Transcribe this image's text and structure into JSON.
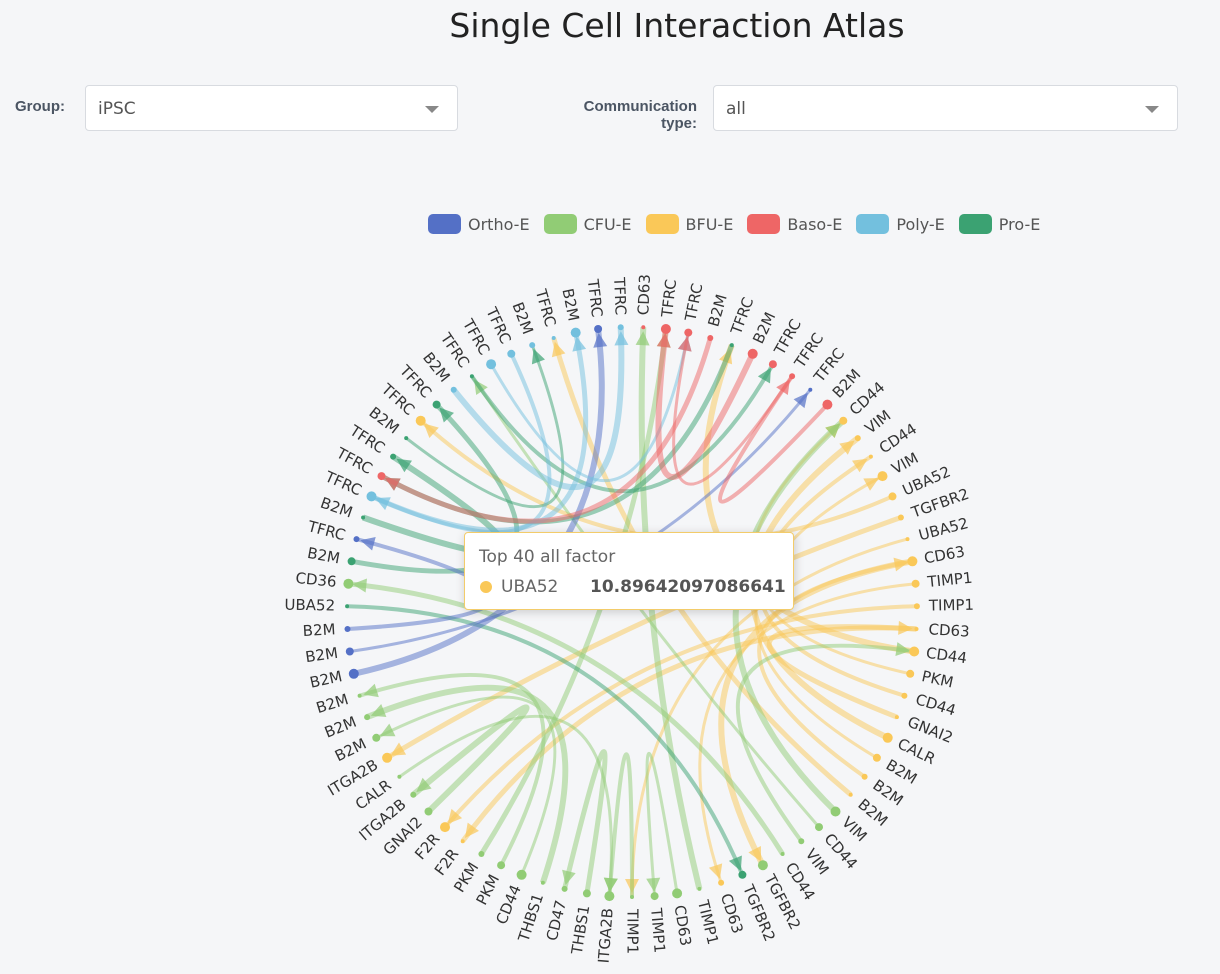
{
  "page": {
    "title": "Single Cell Interaction Atlas"
  },
  "filters": {
    "group_label": "Group:",
    "group_value": "iPSC",
    "comm_label_line1": "Communication",
    "comm_label_line2": "type:",
    "comm_value": "all"
  },
  "legend": [
    {
      "name": "Ortho-E",
      "color": "#5470c6"
    },
    {
      "name": "CFU-E",
      "color": "#91cc75"
    },
    {
      "name": "BFU-E",
      "color": "#fac858"
    },
    {
      "name": "Baso-E",
      "color": "#ee6666"
    },
    {
      "name": "Poly-E",
      "color": "#73c0de"
    },
    {
      "name": "Pro-E",
      "color": "#3ba272"
    }
  ],
  "tooltip": {
    "title": "Top 40 all factor",
    "name": "UBA52",
    "value": "10.89642097086641",
    "color": "#fac858"
  },
  "chart_data": {
    "type": "chord",
    "title": "",
    "nodes": [
      {
        "label": "TIMP1",
        "group": "CFU-E"
      },
      {
        "label": "ITGA2B",
        "group": "CFU-E"
      },
      {
        "label": "THBS1",
        "group": "CFU-E"
      },
      {
        "label": "CD47",
        "group": "CFU-E"
      },
      {
        "label": "THBS1",
        "group": "CFU-E"
      },
      {
        "label": "CD44",
        "group": "CFU-E"
      },
      {
        "label": "PKM",
        "group": "CFU-E"
      },
      {
        "label": "PKM",
        "group": "CFU-E"
      },
      {
        "label": "F2R",
        "group": "BFU-E"
      },
      {
        "label": "F2R",
        "group": "BFU-E"
      },
      {
        "label": "GNAI2",
        "group": "CFU-E"
      },
      {
        "label": "ITGA2B",
        "group": "CFU-E"
      },
      {
        "label": "CALR",
        "group": "CFU-E"
      },
      {
        "label": "ITGA2B",
        "group": "BFU-E"
      },
      {
        "label": "B2M",
        "group": "CFU-E"
      },
      {
        "label": "B2M",
        "group": "CFU-E"
      },
      {
        "label": "B2M",
        "group": "CFU-E"
      },
      {
        "label": "B2M",
        "group": "Ortho-E"
      },
      {
        "label": "B2M",
        "group": "Ortho-E"
      },
      {
        "label": "B2M",
        "group": "Ortho-E"
      },
      {
        "label": "UBA52",
        "group": "Pro-E"
      },
      {
        "label": "CD36",
        "group": "CFU-E"
      },
      {
        "label": "B2M",
        "group": "Pro-E"
      },
      {
        "label": "TFRC",
        "group": "Ortho-E"
      },
      {
        "label": "B2M",
        "group": "Pro-E"
      },
      {
        "label": "TFRC",
        "group": "Poly-E"
      },
      {
        "label": "TFRC",
        "group": "Baso-E"
      },
      {
        "label": "TFRC",
        "group": "Pro-E"
      },
      {
        "label": "B2M",
        "group": "Pro-E"
      },
      {
        "label": "TFRC",
        "group": "BFU-E"
      },
      {
        "label": "TFRC",
        "group": "Pro-E"
      },
      {
        "label": "B2M",
        "group": "Poly-E"
      },
      {
        "label": "TFRC",
        "group": "Pro-E"
      },
      {
        "label": "TFRC",
        "group": "Poly-E"
      },
      {
        "label": "TFRC",
        "group": "Poly-E"
      },
      {
        "label": "B2M",
        "group": "Poly-E"
      },
      {
        "label": "TFRC",
        "group": "Poly-E"
      },
      {
        "label": "B2M",
        "group": "Poly-E"
      },
      {
        "label": "TFRC",
        "group": "Ortho-E"
      },
      {
        "label": "TFRC",
        "group": "Poly-E"
      },
      {
        "label": "CD63",
        "group": "Baso-E"
      },
      {
        "label": "TFRC",
        "group": "Baso-E"
      },
      {
        "label": "TFRC",
        "group": "Baso-E"
      },
      {
        "label": "B2M",
        "group": "Baso-E"
      },
      {
        "label": "TFRC",
        "group": "Pro-E"
      },
      {
        "label": "B2M",
        "group": "Baso-E"
      },
      {
        "label": "TFRC",
        "group": "Baso-E"
      },
      {
        "label": "TFRC",
        "group": "Baso-E"
      },
      {
        "label": "TFRC",
        "group": "Ortho-E"
      },
      {
        "label": "B2M",
        "group": "Baso-E"
      },
      {
        "label": "CD44",
        "group": "BFU-E"
      },
      {
        "label": "VIM",
        "group": "BFU-E"
      },
      {
        "label": "CD44",
        "group": "BFU-E"
      },
      {
        "label": "VIM",
        "group": "BFU-E"
      },
      {
        "label": "UBA52",
        "group": "BFU-E"
      },
      {
        "label": "TGFBR2",
        "group": "BFU-E"
      },
      {
        "label": "UBA52",
        "group": "BFU-E"
      },
      {
        "label": "CD63",
        "group": "BFU-E"
      },
      {
        "label": "TIMP1",
        "group": "BFU-E"
      },
      {
        "label": "TIMP1",
        "group": "BFU-E"
      },
      {
        "label": "CD63",
        "group": "BFU-E"
      },
      {
        "label": "CD44",
        "group": "BFU-E"
      },
      {
        "label": "PKM",
        "group": "BFU-E"
      },
      {
        "label": "CD44",
        "group": "BFU-E"
      },
      {
        "label": "GNAI2",
        "group": "BFU-E"
      },
      {
        "label": "CALR",
        "group": "BFU-E"
      },
      {
        "label": "B2M",
        "group": "BFU-E"
      },
      {
        "label": "B2M",
        "group": "BFU-E"
      },
      {
        "label": "B2M",
        "group": "BFU-E"
      },
      {
        "label": "VIM",
        "group": "CFU-E"
      },
      {
        "label": "CD44",
        "group": "CFU-E"
      },
      {
        "label": "VIM",
        "group": "CFU-E"
      },
      {
        "label": "CD44",
        "group": "CFU-E"
      },
      {
        "label": "TGFBR2",
        "group": "CFU-E"
      },
      {
        "label": "TGFBR2",
        "group": "Pro-E"
      },
      {
        "label": "CD63",
        "group": "BFU-E"
      },
      {
        "label": "TIMP1",
        "group": "CFU-E"
      },
      {
        "label": "CD63",
        "group": "CFU-E"
      },
      {
        "label": "TIMP1",
        "group": "CFU-E"
      }
    ],
    "links": [
      {
        "source": 56,
        "target": 0,
        "group": "BFU-E"
      },
      {
        "source": 54,
        "target": 29,
        "group": "BFU-E"
      },
      {
        "source": 55,
        "target": 13,
        "group": "BFU-E"
      },
      {
        "source": 57,
        "target": 73,
        "group": "BFU-E"
      },
      {
        "source": 58,
        "target": 75,
        "group": "BFU-E"
      },
      {
        "source": 59,
        "target": 9,
        "group": "BFU-E"
      },
      {
        "source": 60,
        "target": 8,
        "group": "BFU-E"
      },
      {
        "source": 61,
        "target": 44,
        "group": "BFU-E"
      },
      {
        "source": 62,
        "target": 50,
        "group": "BFU-E"
      },
      {
        "source": 63,
        "target": 52,
        "group": "BFU-E"
      },
      {
        "source": 64,
        "target": 60,
        "group": "BFU-E"
      },
      {
        "source": 65,
        "target": 51,
        "group": "BFU-E"
      },
      {
        "source": 66,
        "target": 53,
        "group": "BFU-E"
      },
      {
        "source": 67,
        "target": 57,
        "group": "BFU-E"
      },
      {
        "source": 68,
        "target": 36,
        "group": "BFU-E"
      },
      {
        "source": 69,
        "target": 50,
        "group": "CFU-E"
      },
      {
        "source": 70,
        "target": 32,
        "group": "CFU-E"
      },
      {
        "source": 71,
        "target": 61,
        "group": "CFU-E"
      },
      {
        "source": 72,
        "target": 21,
        "group": "CFU-E"
      },
      {
        "source": 76,
        "target": 40,
        "group": "CFU-E"
      },
      {
        "source": 77,
        "target": 78,
        "group": "CFU-E"
      },
      {
        "source": 0,
        "target": 1,
        "group": "CFU-E"
      },
      {
        "source": 2,
        "target": 3,
        "group": "CFU-E"
      },
      {
        "source": 4,
        "target": 15,
        "group": "CFU-E"
      },
      {
        "source": 5,
        "target": 14,
        "group": "CFU-E"
      },
      {
        "source": 6,
        "target": 16,
        "group": "CFU-E"
      },
      {
        "source": 7,
        "target": 41,
        "group": "CFU-E"
      },
      {
        "source": 10,
        "target": 11,
        "group": "CFU-E"
      },
      {
        "source": 12,
        "target": 1,
        "group": "CFU-E"
      },
      {
        "source": 20,
        "target": 74,
        "group": "Pro-E"
      },
      {
        "source": 22,
        "target": 30,
        "group": "Pro-E"
      },
      {
        "source": 24,
        "target": 27,
        "group": "Pro-E"
      },
      {
        "source": 28,
        "target": 35,
        "group": "Pro-E"
      },
      {
        "source": 32,
        "target": 46,
        "group": "Pro-E"
      },
      {
        "source": 44,
        "target": 26,
        "group": "Pro-E"
      },
      {
        "source": 17,
        "target": 38,
        "group": "Ortho-E"
      },
      {
        "source": 18,
        "target": 48,
        "group": "Ortho-E"
      },
      {
        "source": 19,
        "target": 23,
        "group": "Ortho-E"
      },
      {
        "source": 25,
        "target": 37,
        "group": "Poly-E"
      },
      {
        "source": 31,
        "target": 39,
        "group": "Poly-E"
      },
      {
        "source": 33,
        "target": 42,
        "group": "Poly-E"
      },
      {
        "source": 34,
        "target": 25,
        "group": "Poly-E"
      },
      {
        "source": 43,
        "target": 26,
        "group": "Baso-E"
      },
      {
        "source": 45,
        "target": 41,
        "group": "Baso-E"
      },
      {
        "source": 47,
        "target": 42,
        "group": "Baso-E"
      },
      {
        "source": 49,
        "target": 47,
        "group": "Baso-E"
      }
    ]
  }
}
